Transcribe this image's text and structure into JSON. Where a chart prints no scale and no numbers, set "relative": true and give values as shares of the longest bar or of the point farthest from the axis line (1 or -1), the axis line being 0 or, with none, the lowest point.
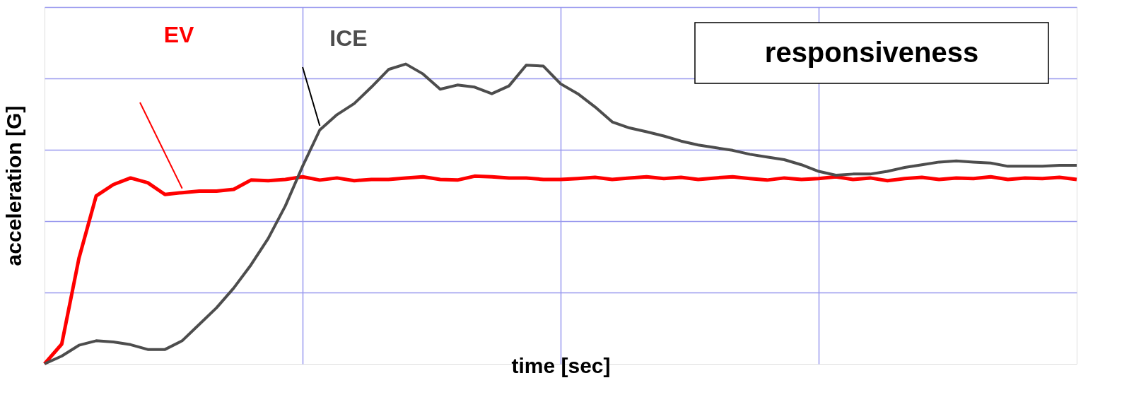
{
  "chart_data": {
    "type": "line",
    "relative": true,
    "xlabel": "time [sec]",
    "ylabel": "acceleration [G]",
    "annotations": [
      "responsiveness"
    ],
    "grid": true,
    "legend": false,
    "marker": "none",
    "line_style": "solid",
    "categories": [
      null,
      null,
      null,
      null,
      null,
      null,
      null,
      null,
      null,
      null,
      null,
      null,
      null,
      null,
      null,
      null,
      null,
      null,
      null,
      null,
      null,
      null,
      null,
      null,
      null,
      null,
      null,
      null,
      null,
      null,
      null,
      null,
      null,
      null,
      null,
      null,
      null,
      null,
      null,
      null,
      null,
      null,
      null,
      null,
      null,
      null,
      null,
      null,
      null,
      null,
      null,
      null,
      null,
      null,
      null,
      null,
      null,
      null,
      null,
      null,
      null
    ],
    "series": [
      {
        "name": "EV",
        "color": "#ff0000",
        "values": [
          0,
          0.066,
          0.352,
          0.56,
          0.598,
          0.62,
          0.604,
          0.565,
          0.571,
          0.576,
          0.576,
          0.582,
          0.613,
          0.611,
          0.615,
          0.624,
          0.613,
          0.62,
          0.611,
          0.615,
          0.615,
          0.62,
          0.624,
          0.615,
          0.613,
          0.626,
          0.624,
          0.62,
          0.62,
          0.615,
          0.615,
          0.618,
          0.622,
          0.615,
          0.62,
          0.624,
          0.618,
          0.622,
          0.615,
          0.62,
          0.624,
          0.618,
          0.613,
          0.62,
          0.615,
          0.618,
          0.624,
          0.615,
          0.62,
          0.611,
          0.618,
          0.622,
          0.615,
          0.62,
          0.618,
          0.624,
          0.615,
          0.62,
          0.618,
          0.622,
          0.615
        ]
      },
      {
        "name": "ICE",
        "color": "#4d4d4d",
        "values": [
          0,
          0.026,
          0.062,
          0.077,
          0.073,
          0.064,
          0.048,
          0.048,
          0.077,
          0.132,
          0.187,
          0.253,
          0.33,
          0.418,
          0.527,
          0.659,
          0.78,
          0.831,
          0.868,
          0.923,
          0.982,
          1.0,
          0.967,
          0.916,
          0.93,
          0.923,
          0.901,
          0.927,
          0.996,
          0.993,
          0.934,
          0.901,
          0.857,
          0.807,
          0.787,
          0.774,
          0.76,
          0.743,
          0.73,
          0.721,
          0.712,
          0.699,
          0.69,
          0.681,
          0.664,
          0.642,
          0.629,
          0.633,
          0.633,
          0.642,
          0.655,
          0.664,
          0.673,
          0.677,
          0.673,
          0.67,
          0.659,
          0.659,
          0.659,
          0.662,
          0.662
        ]
      }
    ]
  }
}
